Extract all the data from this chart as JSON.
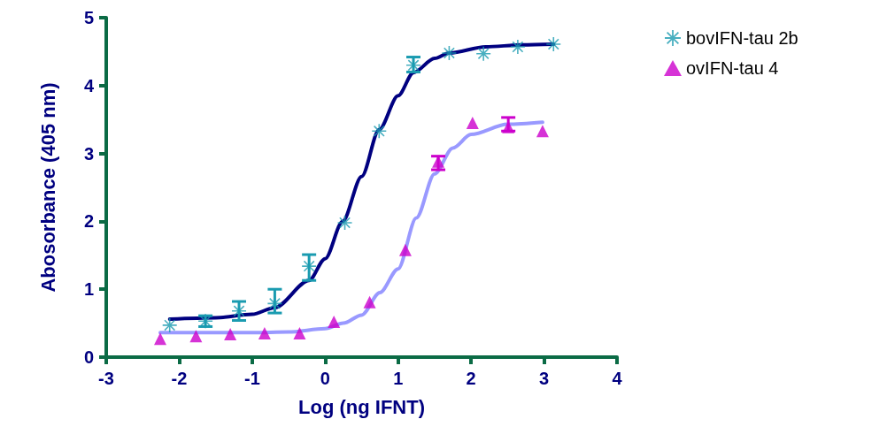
{
  "chart_data": {
    "type": "scatter",
    "xlabel": "Log (ng IFNT)",
    "ylabel": "Abosorbance (405 nm)",
    "xlim": [
      -3,
      4
    ],
    "xticks": [
      -3,
      -2,
      -1,
      0,
      1,
      2,
      3,
      4
    ],
    "ylim": [
      0,
      5
    ],
    "yticks": [
      0,
      1,
      2,
      3,
      4,
      5
    ],
    "grid": false,
    "legend": "top right",
    "series": [
      {
        "name": "bovIFN-tau 2b",
        "marker": "star",
        "color": "#1a9bb0",
        "x": [
          -2.13,
          -1.64,
          -1.18,
          -0.69,
          -0.22,
          0.27,
          0.74,
          1.21,
          1.7,
          2.17,
          2.64,
          3.13
        ],
        "values": [
          0.47,
          0.53,
          0.68,
          0.79,
          1.34,
          1.98,
          3.33,
          4.3,
          4.48,
          4.47,
          4.57,
          4.61
        ],
        "errors": [
          null,
          [
            0.45,
            0.61
          ],
          [
            0.54,
            0.82
          ],
          [
            0.65,
            1.0
          ],
          [
            1.13,
            1.51
          ],
          null,
          null,
          [
            4.2,
            4.42
          ],
          null,
          null,
          null,
          null
        ]
      },
      {
        "name": "ovIFN-tau 4",
        "marker": "triangle",
        "color": "#cc00cc",
        "x": [
          -2.26,
          -1.77,
          -1.3,
          -0.83,
          -0.35,
          0.12,
          0.61,
          1.1,
          1.55,
          2.02,
          2.51,
          2.98
        ],
        "values": [
          0.27,
          0.31,
          0.34,
          0.35,
          0.35,
          0.52,
          0.81,
          1.58,
          2.88,
          3.45,
          3.39,
          3.33
        ],
        "errors": [
          null,
          null,
          null,
          null,
          null,
          null,
          null,
          null,
          [
            2.76,
            2.96
          ],
          null,
          [
            3.33,
            3.53
          ],
          null
        ]
      },
      {
        "type": "line",
        "marker": "none",
        "color": "#000080",
        "x": [
          -2.13,
          -1.5,
          -1,
          -0.69,
          -0.22,
          0,
          0.24,
          0.5,
          0.74,
          1,
          1.21,
          1.5,
          1.7,
          2.2,
          2.7,
          3.13
        ],
        "values": [
          0.56,
          0.58,
          0.63,
          0.73,
          1.13,
          1.45,
          2.0,
          2.66,
          3.35,
          3.85,
          4.19,
          4.4,
          4.48,
          4.57,
          4.6,
          4.61
        ]
      },
      {
        "type": "line",
        "marker": "none",
        "color": "#9999ff",
        "x": [
          -2.26,
          -1,
          -0.5,
          0,
          0.25,
          0.5,
          0.75,
          1,
          1.25,
          1.5,
          1.75,
          2,
          2.5,
          2.98
        ],
        "values": [
          0.36,
          0.36,
          0.37,
          0.42,
          0.5,
          0.62,
          0.95,
          1.3,
          2.05,
          2.7,
          3.08,
          3.28,
          3.43,
          3.46
        ]
      }
    ]
  }
}
